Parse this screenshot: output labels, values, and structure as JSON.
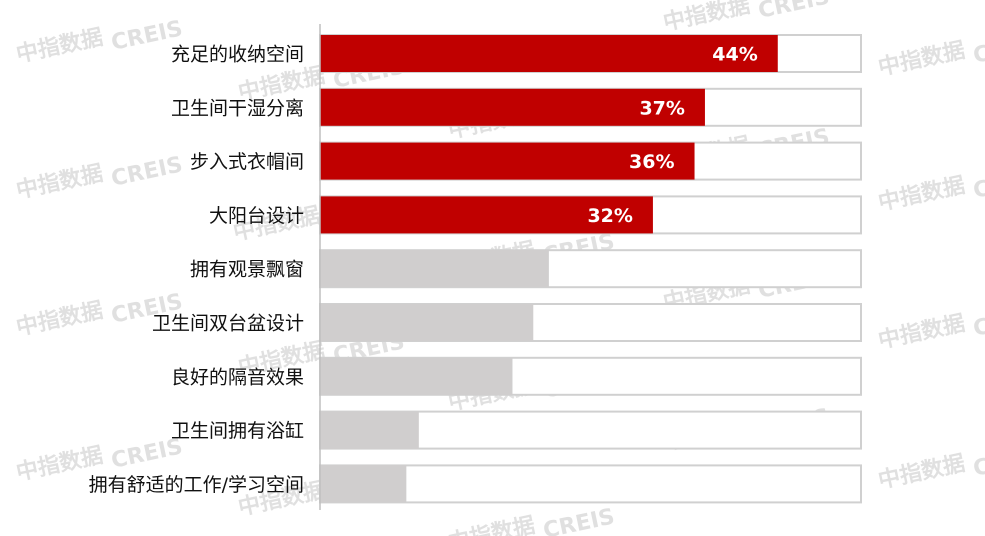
{
  "chart_data": {
    "type": "bar",
    "orientation": "horizontal",
    "categories": [
      "充足的收纳空间",
      "卫生间干湿分离",
      "步入式衣帽间",
      "大阳台设计",
      "拥有观景飘窗",
      "卫生间双台盆设计",
      "良好的隔音效果",
      "卫生间拥有浴缸",
      "拥有舒适的工作/学习空间"
    ],
    "values": [
      44,
      37,
      36,
      32,
      22,
      20.5,
      18.5,
      9.5,
      8.3
    ],
    "value_labels": [
      "44%",
      "37%",
      "36%",
      "32%",
      "",
      "",
      "",
      "",
      ""
    ],
    "highlight_count": 4,
    "xlim": [
      0,
      52
    ],
    "grid": false,
    "legend": "none"
  },
  "colors": {
    "highlight": "#c00000",
    "muted": "#d0cece",
    "track_border": "#d0d0d0",
    "axis": "#bfbfbf"
  },
  "watermark": {
    "lines": [
      "中指数据",
      "CREIS"
    ]
  }
}
